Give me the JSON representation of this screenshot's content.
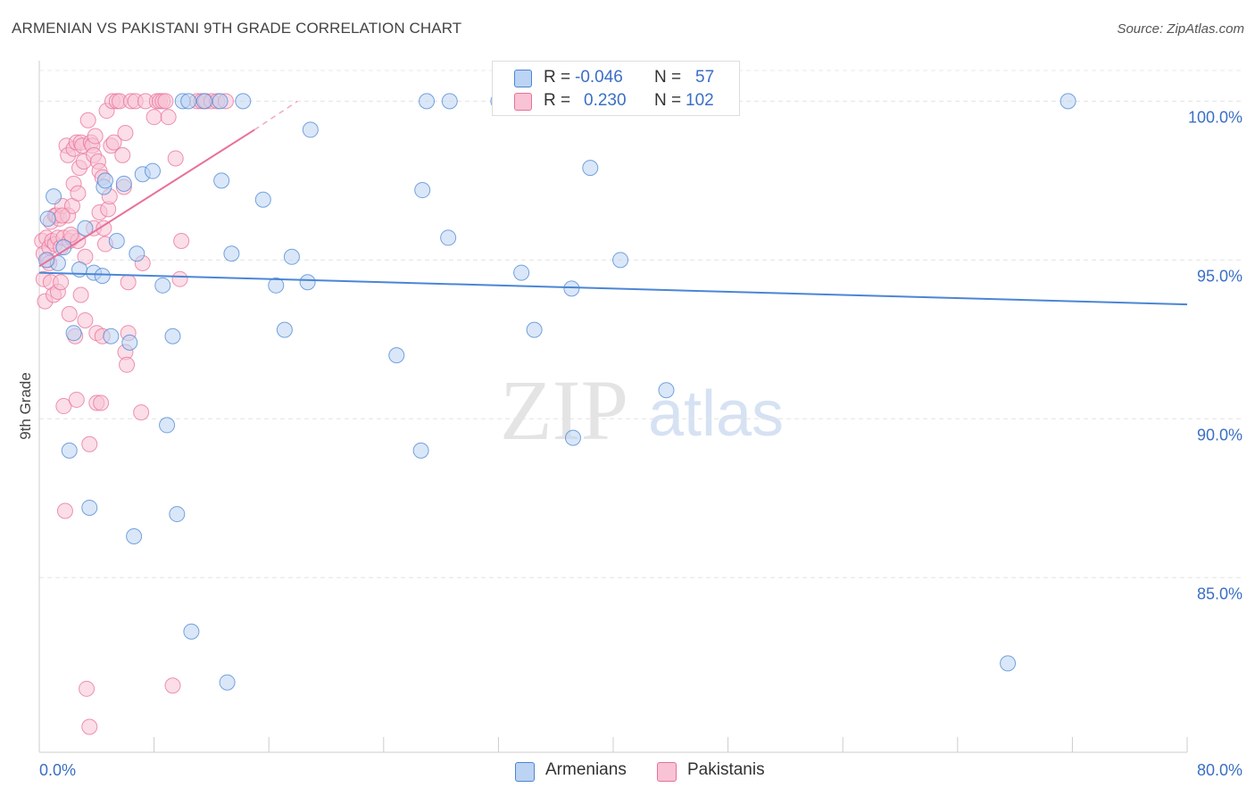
{
  "title": "ARMENIAN VS PAKISTANI 9TH GRADE CORRELATION CHART",
  "source": "Source: ZipAtlas.com",
  "watermark": {
    "zip": "ZIP",
    "atlas": "atlas"
  },
  "colors": {
    "armenians": "#4a86d6",
    "armenians_fill": "#bcd3f3",
    "pakistanis": "#e8709a",
    "pakistanis_fill": "#f8c3d4",
    "axis_text": "#3a6fc4"
  },
  "stats": {
    "armenians": {
      "r_label": "R =",
      "r_value": "-0.046",
      "n_label": "N =",
      "n_value": "57"
    },
    "pakistanis": {
      "r_label": "R =",
      "r_value": "0.230",
      "n_label": "N =",
      "n_value": "102"
    }
  },
  "legend": {
    "armenians": "Armenians",
    "pakistanis": "Pakistanis"
  },
  "chart_data": {
    "type": "scatter",
    "title": "ARMENIAN VS PAKISTANI 9TH GRADE CORRELATION CHART",
    "xlabel": "",
    "ylabel": "9th Grade",
    "xlim": [
      0,
      80
    ],
    "ylim": [
      79.5,
      101.5
    ],
    "x_tick_labels": [
      {
        "value": 0,
        "label": "0.0%"
      },
      {
        "value": 80,
        "label": "80.0%"
      }
    ],
    "y_tick_labels": [
      {
        "value": 100,
        "label": "100.0%"
      },
      {
        "value": 95,
        "label": "95.0%"
      },
      {
        "value": 90,
        "label": "90.0%"
      },
      {
        "value": 85,
        "label": "85.0%"
      }
    ],
    "series": [
      {
        "name": "Armenians",
        "trend": {
          "x0": 0,
          "y0": 94.6,
          "x1": 80,
          "y1": 93.6
        },
        "points": [
          [
            0.6,
            96.3
          ],
          [
            1.0,
            97.0
          ],
          [
            1.3,
            94.9
          ],
          [
            1.7,
            95.4
          ],
          [
            2.1,
            89.0
          ],
          [
            2.4,
            92.7
          ],
          [
            2.8,
            94.7
          ],
          [
            3.2,
            96.0
          ],
          [
            3.5,
            87.2
          ],
          [
            3.8,
            94.6
          ],
          [
            4.4,
            94.5
          ],
          [
            4.5,
            97.3
          ],
          [
            4.6,
            97.5
          ],
          [
            5.0,
            92.6
          ],
          [
            5.4,
            95.6
          ],
          [
            5.9,
            97.4
          ],
          [
            6.3,
            92.4
          ],
          [
            6.6,
            86.3
          ],
          [
            6.8,
            95.2
          ],
          [
            7.2,
            97.7
          ],
          [
            7.9,
            97.8
          ],
          [
            8.6,
            94.2
          ],
          [
            8.9,
            89.8
          ],
          [
            9.3,
            92.6
          ],
          [
            9.6,
            87.0
          ],
          [
            10.0,
            100.0
          ],
          [
            10.4,
            100.0
          ],
          [
            10.6,
            83.3
          ],
          [
            11.5,
            100.0
          ],
          [
            12.6,
            100.0
          ],
          [
            12.7,
            97.5
          ],
          [
            13.1,
            81.7
          ],
          [
            13.4,
            95.2
          ],
          [
            14.2,
            100.0
          ],
          [
            15.6,
            96.9
          ],
          [
            16.5,
            94.2
          ],
          [
            17.1,
            92.8
          ],
          [
            17.6,
            95.1
          ],
          [
            18.7,
            94.3
          ],
          [
            18.9,
            99.1
          ],
          [
            24.9,
            92.0
          ],
          [
            26.6,
            89.0
          ],
          [
            26.7,
            97.2
          ],
          [
            27.0,
            100.0
          ],
          [
            28.5,
            95.7
          ],
          [
            28.6,
            100.0
          ],
          [
            32.0,
            100.0
          ],
          [
            33.6,
            94.6
          ],
          [
            34.5,
            92.8
          ],
          [
            37.1,
            94.1
          ],
          [
            37.2,
            89.4
          ],
          [
            38.4,
            97.9
          ],
          [
            40.5,
            95.0
          ],
          [
            43.7,
            90.9
          ],
          [
            67.5,
            82.3
          ],
          [
            71.7,
            100.0
          ],
          [
            0.5,
            95.0
          ]
        ]
      },
      {
        "name": "Pakistanis",
        "trend": {
          "x0": 0,
          "y0": 94.8,
          "x1": 15.0,
          "y1": 99.1,
          "dash_x1": 18.0,
          "dash_y1": 100.0
        },
        "points": [
          [
            0.2,
            95.6
          ],
          [
            0.3,
            95.2
          ],
          [
            0.3,
            94.4
          ],
          [
            0.4,
            93.7
          ],
          [
            0.5,
            95.7
          ],
          [
            0.6,
            95.0
          ],
          [
            0.7,
            94.9
          ],
          [
            0.7,
            95.4
          ],
          [
            0.8,
            96.2
          ],
          [
            0.8,
            94.3
          ],
          [
            0.9,
            95.6
          ],
          [
            1.0,
            93.9
          ],
          [
            1.1,
            96.4
          ],
          [
            1.1,
            95.5
          ],
          [
            1.2,
            96.4
          ],
          [
            1.3,
            95.7
          ],
          [
            1.3,
            94.0
          ],
          [
            1.4,
            96.3
          ],
          [
            1.5,
            95.4
          ],
          [
            1.5,
            94.3
          ],
          [
            1.6,
            96.7
          ],
          [
            1.7,
            95.7
          ],
          [
            1.7,
            90.4
          ],
          [
            1.8,
            87.1
          ],
          [
            1.9,
            98.6
          ],
          [
            2.0,
            98.3
          ],
          [
            2.0,
            96.4
          ],
          [
            2.1,
            95.6
          ],
          [
            2.1,
            93.3
          ],
          [
            2.3,
            95.7
          ],
          [
            2.3,
            96.7
          ],
          [
            2.4,
            98.5
          ],
          [
            2.4,
            97.4
          ],
          [
            2.5,
            92.6
          ],
          [
            2.6,
            98.7
          ],
          [
            2.6,
            90.6
          ],
          [
            2.7,
            97.1
          ],
          [
            2.7,
            95.6
          ],
          [
            2.8,
            97.9
          ],
          [
            2.9,
            98.7
          ],
          [
            3.0,
            98.6
          ],
          [
            3.1,
            98.1
          ],
          [
            3.2,
            95.1
          ],
          [
            3.2,
            93.1
          ],
          [
            3.3,
            81.5
          ],
          [
            3.4,
            99.4
          ],
          [
            3.5,
            89.2
          ],
          [
            3.6,
            98.7
          ],
          [
            3.7,
            98.6
          ],
          [
            3.8,
            98.3
          ],
          [
            3.8,
            96.0
          ],
          [
            3.9,
            98.9
          ],
          [
            4.0,
            92.7
          ],
          [
            4.0,
            90.5
          ],
          [
            4.1,
            98.1
          ],
          [
            4.2,
            97.8
          ],
          [
            4.2,
            96.5
          ],
          [
            4.3,
            90.5
          ],
          [
            4.4,
            92.6
          ],
          [
            4.4,
            97.6
          ],
          [
            4.5,
            96.0
          ],
          [
            4.6,
            95.5
          ],
          [
            4.7,
            99.7
          ],
          [
            4.8,
            96.6
          ],
          [
            4.9,
            97.0
          ],
          [
            5.0,
            98.6
          ],
          [
            5.1,
            100.0
          ],
          [
            5.2,
            98.7
          ],
          [
            5.4,
            100.0
          ],
          [
            5.6,
            100.0
          ],
          [
            5.8,
            98.3
          ],
          [
            5.9,
            97.3
          ],
          [
            6.0,
            99.0
          ],
          [
            6.0,
            92.1
          ],
          [
            6.1,
            91.7
          ],
          [
            6.2,
            94.3
          ],
          [
            6.2,
            92.7
          ],
          [
            6.4,
            100.0
          ],
          [
            6.7,
            100.0
          ],
          [
            7.1,
            90.2
          ],
          [
            7.2,
            94.9
          ],
          [
            7.4,
            100.0
          ],
          [
            8.0,
            99.5
          ],
          [
            8.2,
            100.0
          ],
          [
            8.4,
            100.0
          ],
          [
            8.6,
            100.0
          ],
          [
            8.8,
            100.0
          ],
          [
            9.0,
            99.5
          ],
          [
            9.3,
            81.6
          ],
          [
            9.5,
            98.2
          ],
          [
            9.8,
            94.4
          ],
          [
            9.9,
            95.6
          ],
          [
            11.0,
            100.0
          ],
          [
            11.3,
            100.0
          ],
          [
            11.6,
            100.0
          ],
          [
            12.0,
            100.0
          ],
          [
            12.4,
            100.0
          ],
          [
            13.0,
            100.0
          ],
          [
            3.5,
            80.3
          ],
          [
            2.9,
            93.9
          ],
          [
            1.6,
            96.4
          ],
          [
            2.2,
            95.8
          ]
        ]
      }
    ]
  }
}
